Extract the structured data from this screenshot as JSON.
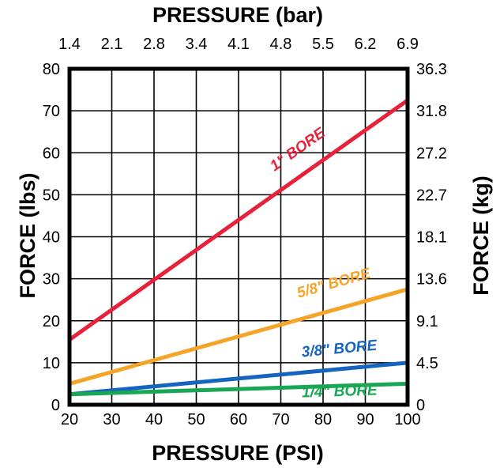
{
  "chart_data": {
    "type": "line",
    "x_bottom": {
      "label": "PRESSURE (PSI)",
      "range": [
        20,
        100
      ],
      "ticks": [
        "20",
        "30",
        "40",
        "50",
        "60",
        "70",
        "80",
        "90",
        "100"
      ]
    },
    "x_top": {
      "label": "PRESSURE (bar)",
      "ticks": [
        "1.4",
        "2.1",
        "2.8",
        "3.4",
        "4.1",
        "4.8",
        "5.5",
        "6.2",
        "6.9"
      ]
    },
    "y_left": {
      "label": "FORCE (lbs)",
      "range": [
        0,
        80
      ],
      "ticks": [
        "0",
        "10",
        "20",
        "30",
        "40",
        "50",
        "60",
        "70",
        "80"
      ]
    },
    "y_right": {
      "label": "FORCE (kg)",
      "ticks": [
        "0",
        "4.5",
        "9.1",
        "13.6",
        "18.1",
        "22.7",
        "27.2",
        "31.8",
        "36.3"
      ]
    },
    "grid": true,
    "series": [
      {
        "name": "1\" BORE",
        "color": "#e8213a",
        "x": [
          20,
          100
        ],
        "y": [
          15.5,
          72.5
        ]
      },
      {
        "name": "5/8\" BORE",
        "color": "#f5a428",
        "x": [
          20,
          100
        ],
        "y": [
          5,
          27.5
        ]
      },
      {
        "name": "3/8\" BORE",
        "color": "#1565c0",
        "x": [
          20,
          100
        ],
        "y": [
          2.5,
          10
        ]
      },
      {
        "name": "1/4\" BORE",
        "color": "#19a655",
        "x": [
          20,
          100
        ],
        "y": [
          2.5,
          5
        ]
      }
    ]
  }
}
